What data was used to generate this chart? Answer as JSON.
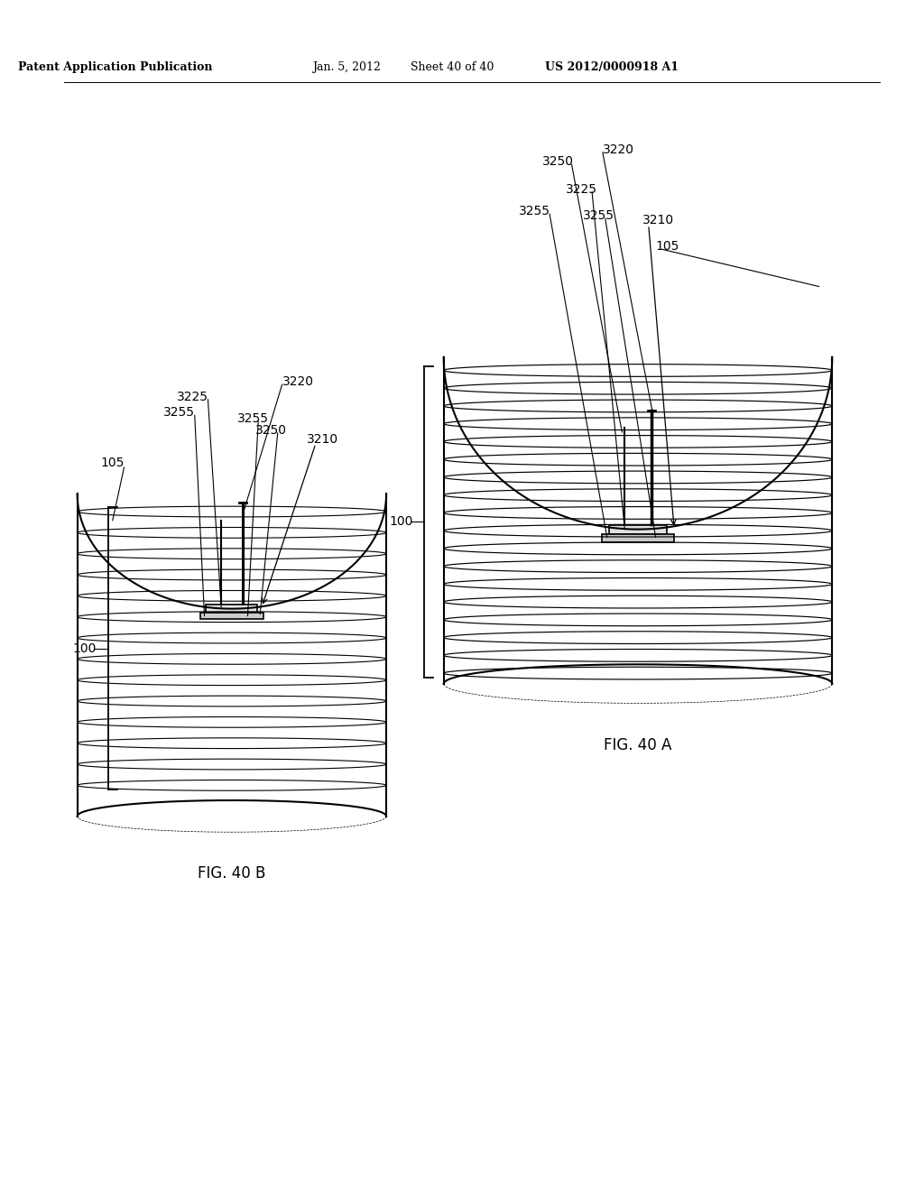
{
  "bg_color": "#ffffff",
  "header_text": "Patent Application Publication",
  "header_date": "Jan. 5, 2012",
  "header_sheet": "Sheet 40 of 40",
  "header_patent": "US 2012/0000918 A1",
  "fig_a_label": "FIG. 40 A",
  "fig_b_label": "FIG. 40 B",
  "line_color": "#000000"
}
